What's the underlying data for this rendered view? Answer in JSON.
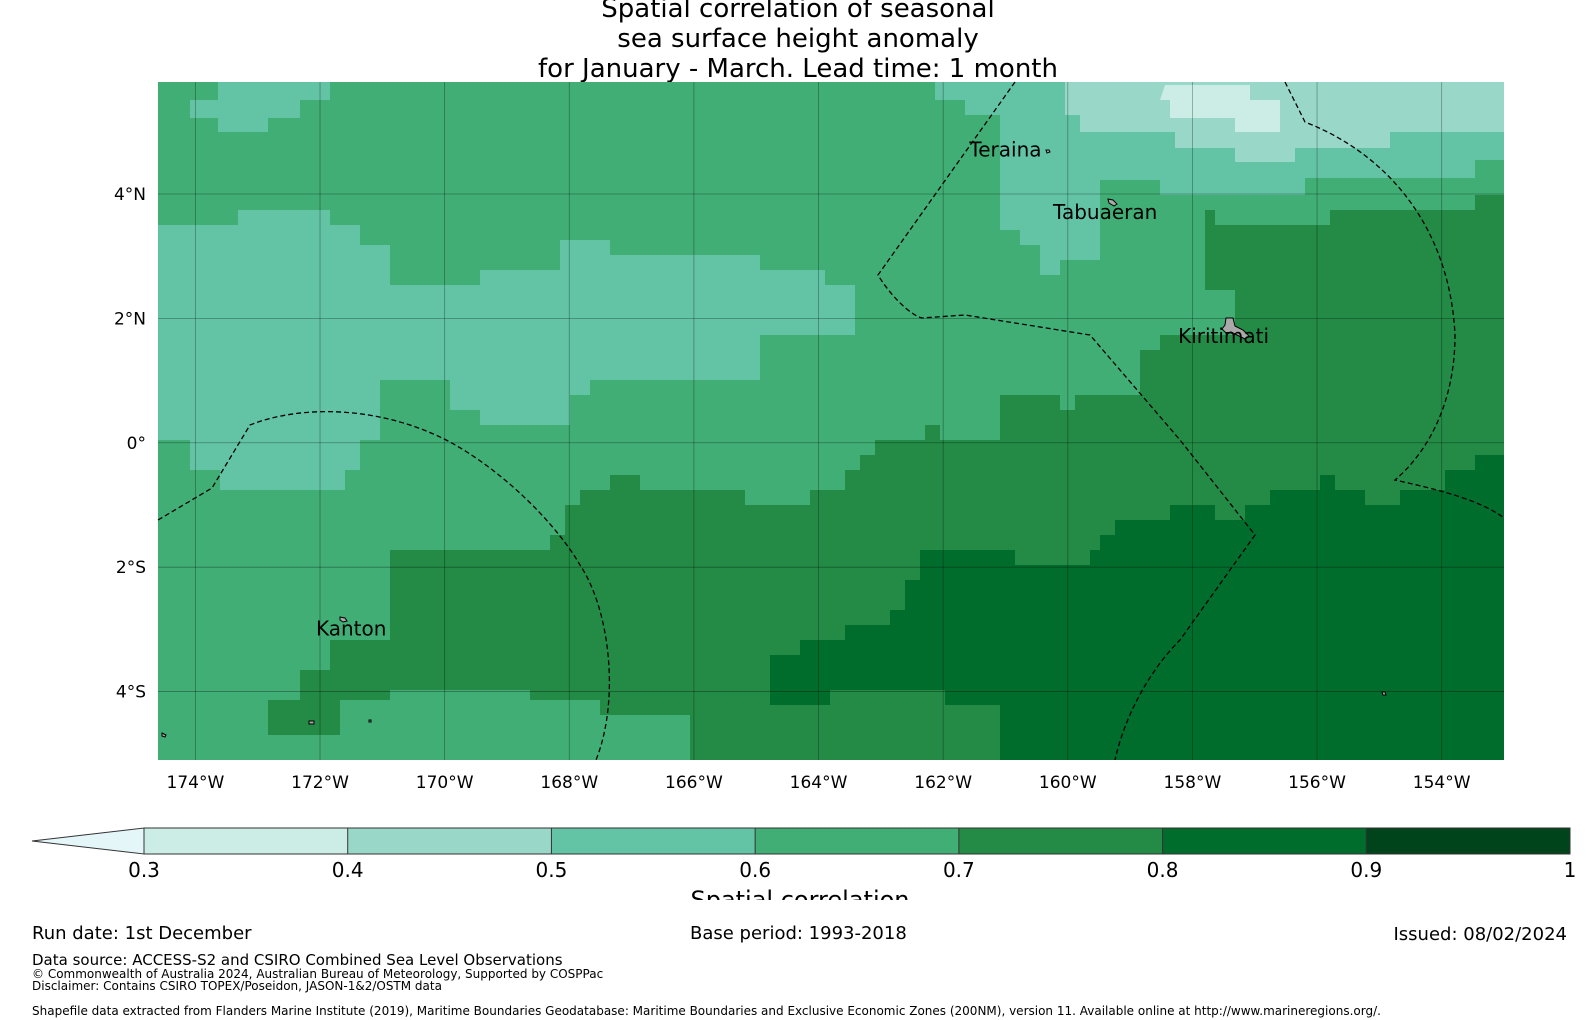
{
  "title": {
    "line1": "Spatial correlation of seasonal",
    "line2": "sea surface height anomaly",
    "line3": "for January - March. Lead time: 1 month"
  },
  "map": {
    "lon_range": [
      -174.6,
      -153
    ],
    "lat_range": [
      -5.1,
      5.8
    ],
    "x_ticks": [
      "174°W",
      "172°W",
      "170°W",
      "168°W",
      "166°W",
      "164°W",
      "162°W",
      "160°W",
      "158°W",
      "156°W",
      "154°W"
    ],
    "y_ticks": [
      "4°N",
      "2°N",
      "0°",
      "2°S",
      "4°S"
    ],
    "places": [
      {
        "name": "Teraina",
        "lon": -161.0,
        "lat": 4.6
      },
      {
        "name": "Tabuaeran",
        "lon": -159.4,
        "lat": 3.6
      },
      {
        "name": "Kiritimati",
        "lon": -157.5,
        "lat": 1.6
      },
      {
        "name": "Kanton",
        "lon": -171.5,
        "lat": -3.1
      }
    ],
    "colors": {
      "c03": "#ccede6",
      "c04": "#99d8c8",
      "c05": "#63c3a5",
      "c06": "#41ae75",
      "c07": "#238b45",
      "c08": "#006d2c",
      "c09": "#00441b",
      "below": "#e5f6f9"
    }
  },
  "colorbar": {
    "ticks": [
      "0.3",
      "0.4",
      "0.5",
      "0.6",
      "0.7",
      "0.8",
      "0.9",
      "1"
    ],
    "label": "Spatial correlation"
  },
  "footer": {
    "run_date": "Run date: 1st December",
    "base_period": "Base period: 1993-2018",
    "issued": "Issued: 08/02/2024",
    "data_source": "Data source: ACCESS-S2 and CSIRO Combined Sea Level Observations",
    "copyright": "© Commonwealth of Australia 2024, Australian Bureau of Meteorology, Supported by COSPPac",
    "disclaimer": "Disclaimer: Contains CSIRO TOPEX/Poseidon, JASON-1&2/OSTM data",
    "shapefile": "Shapefile data extracted from Flanders Marine Institute (2019), Maritime Boundaries Geodatabase: Maritime Boundaries and Exclusive Economic Zones (200NM), version 11. Available online at http://www.marineregions.org/."
  }
}
